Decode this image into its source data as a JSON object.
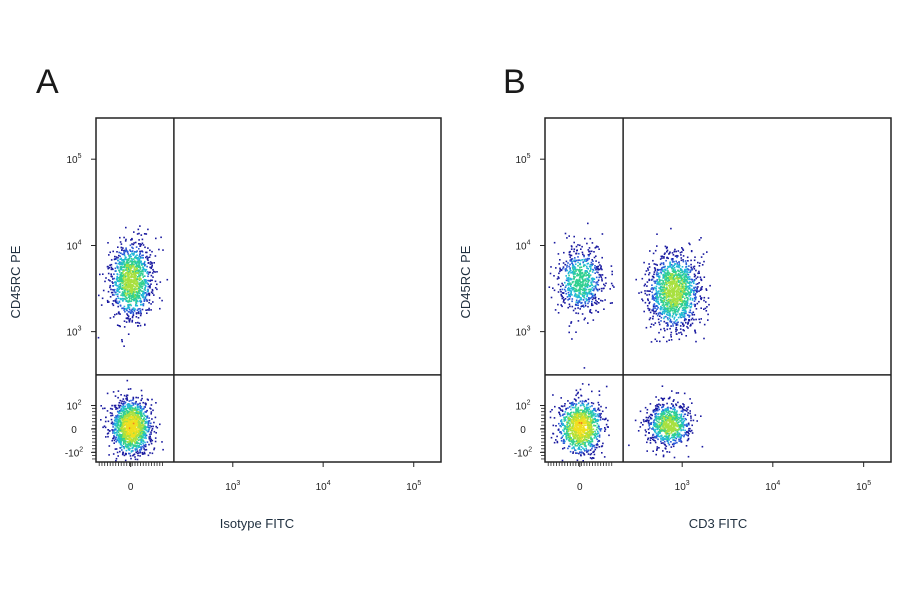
{
  "colors": {
    "density_scale": [
      "#1a1aa0",
      "#2a5ad8",
      "#22b8d8",
      "#30d090",
      "#a8e040",
      "#f0e020",
      "#f08020",
      "#e01818"
    ],
    "gate_line": "#222222",
    "frame": "#222222",
    "axis_title": "#1f2f3f"
  },
  "chart_data": [
    {
      "type": "scatter",
      "panel_label": "A",
      "xlabel": "Isotype FITC",
      "ylabel": "CD45RC PE",
      "x_scale": "biexponential",
      "y_scale": "biexponential",
      "xlim": [
        -150,
        200000
      ],
      "ylim": [
        -150,
        300000
      ],
      "x_ticks": [
        {
          "value": 0,
          "base": "0",
          "exp": ""
        },
        {
          "value": 1000,
          "base": "10",
          "exp": "3"
        },
        {
          "value": 10000,
          "base": "10",
          "exp": "4"
        },
        {
          "value": 100000,
          "base": "10",
          "exp": "5"
        }
      ],
      "y_ticks": [
        {
          "value": -100,
          "base": "-10",
          "exp": "2"
        },
        {
          "value": 0,
          "base": "0",
          "exp": ""
        },
        {
          "value": 100,
          "base": "10",
          "exp": "2"
        },
        {
          "value": 1000,
          "base": "10",
          "exp": "3"
        },
        {
          "value": 10000,
          "base": "10",
          "exp": "4"
        },
        {
          "value": 100000,
          "base": "10",
          "exp": "5"
        }
      ],
      "quadrant_gate": {
        "x": 200,
        "y": 300
      },
      "populations": [
        {
          "x_center": 0,
          "y_center": 10,
          "x_spread": 40,
          "y_spread": 60,
          "count": 1400,
          "density": "high"
        },
        {
          "x_center": 0,
          "y_center": 4000,
          "x_spread": 45,
          "y_spread": 0.55,
          "count": 1200,
          "density": "medium"
        }
      ],
      "grid": false,
      "legend": "none"
    },
    {
      "type": "scatter",
      "panel_label": "B",
      "xlabel": "CD3 FITC",
      "ylabel": "CD45RC PE",
      "x_scale": "biexponential",
      "y_scale": "biexponential",
      "xlim": [
        -150,
        200000
      ],
      "ylim": [
        -150,
        300000
      ],
      "x_ticks": [
        {
          "value": 0,
          "base": "0",
          "exp": ""
        },
        {
          "value": 1000,
          "base": "10",
          "exp": "3"
        },
        {
          "value": 10000,
          "base": "10",
          "exp": "4"
        },
        {
          "value": 100000,
          "base": "10",
          "exp": "5"
        }
      ],
      "y_ticks": [
        {
          "value": -100,
          "base": "-10",
          "exp": "2"
        },
        {
          "value": 0,
          "base": "0",
          "exp": ""
        },
        {
          "value": 100,
          "base": "10",
          "exp": "2"
        },
        {
          "value": 1000,
          "base": "10",
          "exp": "3"
        },
        {
          "value": 10000,
          "base": "10",
          "exp": "4"
        },
        {
          "value": 100000,
          "base": "10",
          "exp": "5"
        }
      ],
      "quadrant_gate": {
        "x": 200,
        "y": 300
      },
      "populations": [
        {
          "x_center": 0,
          "y_center": 10,
          "x_spread": 45,
          "y_spread": 60,
          "count": 1100,
          "density": "high"
        },
        {
          "x_center": 0,
          "y_center": 4000,
          "x_spread": 50,
          "y_spread": 0.5,
          "count": 700,
          "density": "low"
        },
        {
          "x_center": 800,
          "y_center": 3000,
          "x_spread": 0.35,
          "y_spread": 0.55,
          "count": 1400,
          "density": "medium"
        },
        {
          "x_center": 700,
          "y_center": 20,
          "x_spread": 0.3,
          "y_spread": 50,
          "count": 800,
          "density": "medium"
        }
      ],
      "grid": false,
      "legend": "none"
    }
  ]
}
